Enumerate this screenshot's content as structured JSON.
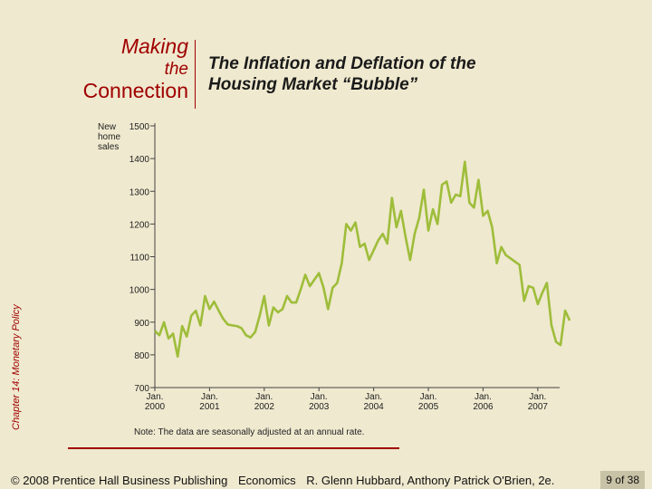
{
  "slide": {
    "side_label": "Chapter 14: Monetary Policy",
    "making": "Making",
    "the": "the",
    "connection": "Connection",
    "title_line1": "The Inflation and Deflation of the",
    "title_line2": "Housing Market “Bubble”",
    "footer_copyright": "© 2008 Prentice Hall Business Publishing",
    "footer_course": "Economics",
    "footer_authors": "R. Glenn Hubbard, Anthony Patrick O'Brien, 2e.",
    "page": "9 of 38"
  },
  "colors": {
    "line": "#9ebd3a",
    "accent": "#a00000",
    "background": "#efe9cf"
  },
  "chart_data": {
    "type": "line",
    "ylabel": [
      "New",
      "home",
      "sales"
    ],
    "note": "Note: The data are seasonally adjusted at an annual rate.",
    "ylim": [
      700,
      1500
    ],
    "yticks": [
      700,
      800,
      900,
      1000,
      1100,
      1200,
      1300,
      1400,
      1500
    ],
    "xlim": [
      "2000-01",
      "2007-05"
    ],
    "xticks": [
      {
        "month": "2000-01",
        "line1": "Jan.",
        "line2": "2000"
      },
      {
        "month": "2001-01",
        "line1": "Jan.",
        "line2": "2001"
      },
      {
        "month": "2002-01",
        "line1": "Jan.",
        "line2": "2002"
      },
      {
        "month": "2003-01",
        "line1": "Jan.",
        "line2": "2003"
      },
      {
        "month": "2004-01",
        "line1": "Jan.",
        "line2": "2004"
      },
      {
        "month": "2005-01",
        "line1": "Jan.",
        "line2": "2005"
      },
      {
        "month": "2006-01",
        "line1": "Jan.",
        "line2": "2006"
      },
      {
        "month": "2007-01",
        "line1": "Jan.",
        "line2": "2007"
      }
    ],
    "series": [
      {
        "data": [
          [
            "2000-01",
            873
          ],
          [
            "2000-02",
            860
          ],
          [
            "2000-03",
            900
          ],
          [
            "2000-04",
            850
          ],
          [
            "2000-05",
            865
          ],
          [
            "2000-06",
            795
          ],
          [
            "2000-07",
            888
          ],
          [
            "2000-08",
            856
          ],
          [
            "2000-09",
            920
          ],
          [
            "2000-10",
            935
          ],
          [
            "2000-11",
            890
          ],
          [
            "2000-12",
            980
          ],
          [
            "2001-01",
            940
          ],
          [
            "2001-02",
            963
          ],
          [
            "2001-03",
            935
          ],
          [
            "2001-04",
            910
          ],
          [
            "2001-05",
            893
          ],
          [
            "2001-06",
            890
          ],
          [
            "2001-07",
            888
          ],
          [
            "2001-08",
            882
          ],
          [
            "2001-09",
            860
          ],
          [
            "2001-10",
            853
          ],
          [
            "2001-11",
            870
          ],
          [
            "2001-12",
            920
          ],
          [
            "2002-01",
            980
          ],
          [
            "2002-02",
            890
          ],
          [
            "2002-03",
            945
          ],
          [
            "2002-04",
            930
          ],
          [
            "2002-05",
            940
          ],
          [
            "2002-06",
            980
          ],
          [
            "2002-07",
            960
          ],
          [
            "2002-08",
            960
          ],
          [
            "2002-09",
            1000
          ],
          [
            "2002-10",
            1045
          ],
          [
            "2002-11",
            1010
          ],
          [
            "2002-12",
            1030
          ],
          [
            "2003-01",
            1050
          ],
          [
            "2003-02",
            1005
          ],
          [
            "2003-03",
            940
          ],
          [
            "2003-04",
            1005
          ],
          [
            "2003-05",
            1020
          ],
          [
            "2003-06",
            1080
          ],
          [
            "2003-07",
            1200
          ],
          [
            "2003-08",
            1180
          ],
          [
            "2003-09",
            1205
          ],
          [
            "2003-10",
            1130
          ],
          [
            "2003-11",
            1140
          ],
          [
            "2003-12",
            1090
          ],
          [
            "2004-01",
            1120
          ],
          [
            "2004-02",
            1150
          ],
          [
            "2004-03",
            1170
          ],
          [
            "2004-04",
            1140
          ],
          [
            "2004-05",
            1280
          ],
          [
            "2004-06",
            1190
          ],
          [
            "2004-07",
            1240
          ],
          [
            "2004-08",
            1160
          ],
          [
            "2004-09",
            1090
          ],
          [
            "2004-10",
            1170
          ],
          [
            "2004-11",
            1220
          ],
          [
            "2004-12",
            1305
          ],
          [
            "2005-01",
            1180
          ],
          [
            "2005-02",
            1245
          ],
          [
            "2005-03",
            1200
          ],
          [
            "2005-04",
            1320
          ],
          [
            "2005-05",
            1330
          ],
          [
            "2005-06",
            1265
          ],
          [
            "2005-07",
            1290
          ],
          [
            "2005-08",
            1285
          ],
          [
            "2005-09",
            1390
          ],
          [
            "2005-10",
            1265
          ],
          [
            "2005-11",
            1250
          ],
          [
            "2005-12",
            1335
          ],
          [
            "2006-01",
            1225
          ],
          [
            "2006-02",
            1240
          ],
          [
            "2006-03",
            1190
          ],
          [
            "2006-04",
            1080
          ],
          [
            "2006-05",
            1130
          ],
          [
            "2006-06",
            1105
          ],
          [
            "2006-07",
            1095
          ],
          [
            "2006-08",
            1085
          ],
          [
            "2006-09",
            1075
          ],
          [
            "2006-10",
            965
          ],
          [
            "2006-11",
            1010
          ],
          [
            "2006-12",
            1005
          ],
          [
            "2007-01",
            955
          ],
          [
            "2007-02",
            990
          ],
          [
            "2007-03",
            1020
          ],
          [
            "2007-04",
            890
          ],
          [
            "2007-05",
            840
          ],
          [
            "2007-06",
            830
          ],
          [
            "2007-07",
            935
          ],
          [
            "2007-08",
            905
          ]
        ]
      }
    ]
  }
}
